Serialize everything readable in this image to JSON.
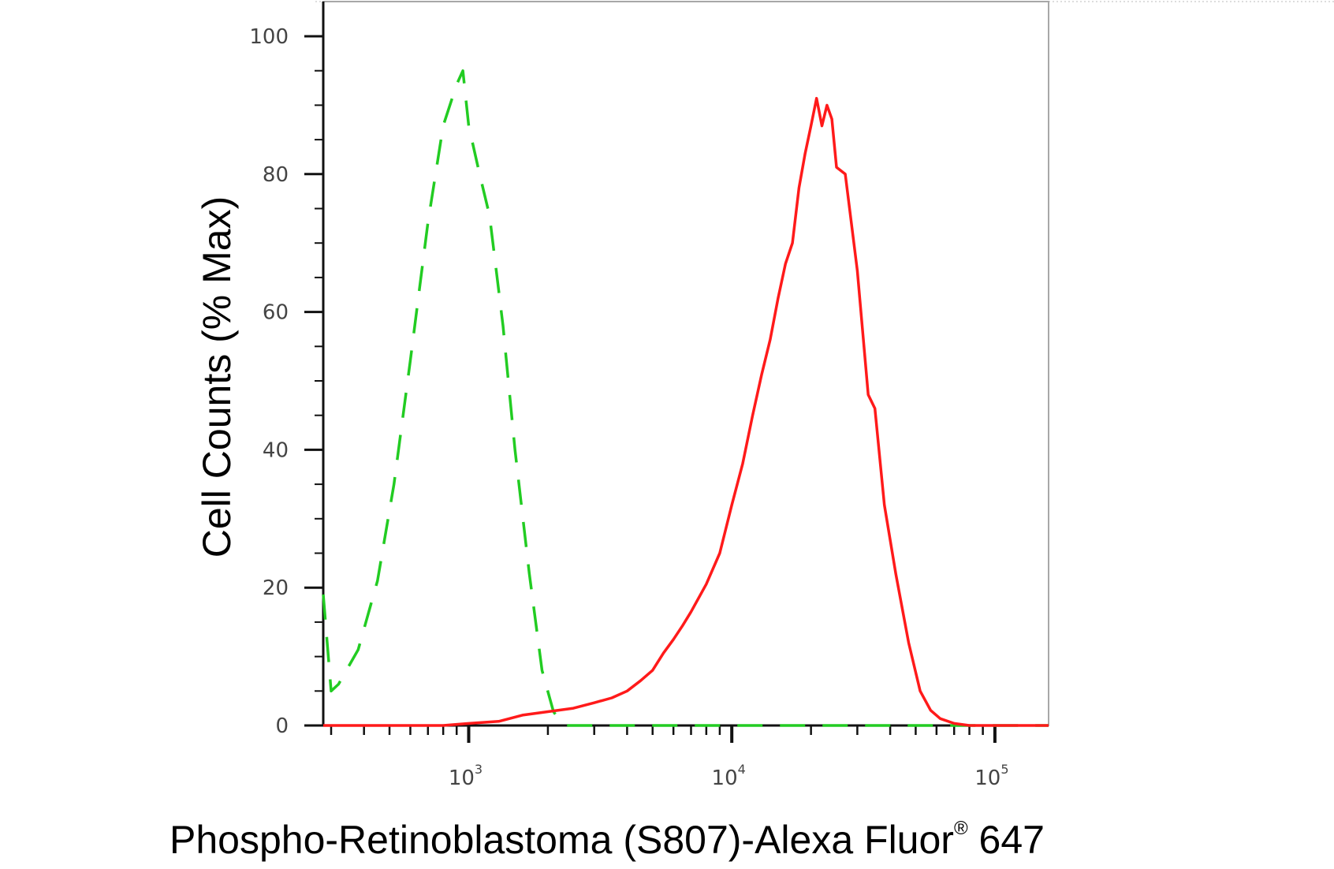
{
  "chart_data": {
    "type": "line",
    "title": "",
    "xlabel": {
      "main": "Phospho-Retinoblastoma (S807)-Alexa Fluor",
      "registered": "®",
      "suffix": " 647"
    },
    "ylabel": "Cell Counts (% Max)",
    "x_scale": "log",
    "xlim": [
      280,
      160000
    ],
    "ylim": [
      0,
      105
    ],
    "x_ticks": [
      {
        "value": 1000,
        "base": "10",
        "exp": "3"
      },
      {
        "value": 10000,
        "base": "10",
        "exp": "4"
      },
      {
        "value": 100000,
        "base": "10",
        "exp": "5"
      }
    ],
    "y_ticks": [
      {
        "value": 0,
        "label": "0"
      },
      {
        "value": 20,
        "label": "20"
      },
      {
        "value": 40,
        "label": "40"
      },
      {
        "value": 60,
        "label": "60"
      },
      {
        "value": 80,
        "label": "80"
      },
      {
        "value": 100,
        "label": "100"
      }
    ],
    "grid": false,
    "series": [
      {
        "style": "dashed",
        "color": "#22cc22",
        "points": [
          [
            280,
            19
          ],
          [
            300,
            5
          ],
          [
            320,
            6
          ],
          [
            380,
            11
          ],
          [
            450,
            21
          ],
          [
            520,
            35
          ],
          [
            600,
            53
          ],
          [
            700,
            73
          ],
          [
            800,
            87
          ],
          [
            900,
            93
          ],
          [
            950,
            95
          ],
          [
            1000,
            87
          ],
          [
            1100,
            80
          ],
          [
            1200,
            74
          ],
          [
            1350,
            58
          ],
          [
            1500,
            40
          ],
          [
            1700,
            22
          ],
          [
            1900,
            8
          ],
          [
            2100,
            2
          ],
          [
            2300,
            0
          ],
          [
            4000,
            0
          ],
          [
            20000,
            0
          ],
          [
            160000,
            0
          ]
        ]
      },
      {
        "style": "solid",
        "color": "#ff1a1a",
        "points": [
          [
            280,
            0
          ],
          [
            800,
            0
          ],
          [
            1000,
            0.3
          ],
          [
            1300,
            0.6
          ],
          [
            1600,
            1.5
          ],
          [
            2000,
            2
          ],
          [
            2500,
            2.5
          ],
          [
            3000,
            3.3
          ],
          [
            3500,
            4
          ],
          [
            4000,
            5
          ],
          [
            4500,
            6.5
          ],
          [
            5000,
            8
          ],
          [
            5500,
            10.5
          ],
          [
            6000,
            12.5
          ],
          [
            6500,
            14.5
          ],
          [
            7000,
            16.5
          ],
          [
            8000,
            20.5
          ],
          [
            9000,
            25
          ],
          [
            10000,
            32
          ],
          [
            11000,
            38
          ],
          [
            12000,
            45
          ],
          [
            13000,
            51
          ],
          [
            14000,
            56
          ],
          [
            15000,
            62
          ],
          [
            16000,
            67
          ],
          [
            17000,
            70
          ],
          [
            18000,
            78
          ],
          [
            19000,
            83
          ],
          [
            20000,
            87
          ],
          [
            21000,
            91
          ],
          [
            22000,
            87
          ],
          [
            23000,
            90
          ],
          [
            24000,
            88
          ],
          [
            25000,
            81
          ],
          [
            27000,
            80
          ],
          [
            30000,
            66
          ],
          [
            33000,
            48
          ],
          [
            35000,
            46
          ],
          [
            38000,
            32
          ],
          [
            42000,
            22
          ],
          [
            47000,
            12
          ],
          [
            52000,
            5
          ],
          [
            57000,
            2.2
          ],
          [
            62000,
            1
          ],
          [
            70000,
            0.3
          ],
          [
            80000,
            0
          ],
          [
            160000,
            0
          ]
        ]
      }
    ]
  }
}
